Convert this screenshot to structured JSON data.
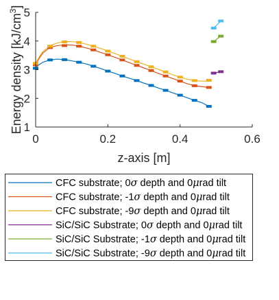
{
  "chart_data": {
    "type": "line",
    "xlabel": "z-axis [m]",
    "ylabel_parts": {
      "main": "Energy density [kJ/cm",
      "sup": "3",
      "close": "]"
    },
    "xlim": [
      0,
      0.6
    ],
    "ylim": [
      1,
      5
    ],
    "xticks": [
      0,
      0.2,
      0.4,
      0.6
    ],
    "xtick_labels": [
      "0",
      "0.2",
      "0.4",
      "0.6"
    ],
    "yticks": [
      1,
      2,
      3,
      4,
      5
    ],
    "ytick_labels": [
      "1",
      "2",
      "3",
      "4",
      "5"
    ],
    "grid": false,
    "legend_position": "below-plot",
    "series": [
      {
        "name": "CFC substrate; 0σ depth and 0μrad tilt",
        "legend": {
          "pre": "CFC substrate; 0",
          "greek1": "σ",
          "mid": " depth and 0",
          "greek2": "μ",
          "post": "rad tilt"
        },
        "color": "#0072BD",
        "x": [
          0,
          0.01,
          0.02,
          0.04,
          0.06,
          0.08,
          0.1,
          0.12,
          0.14,
          0.16,
          0.18,
          0.2,
          0.22,
          0.24,
          0.26,
          0.28,
          0.3,
          0.32,
          0.34,
          0.36,
          0.38,
          0.4,
          0.42,
          0.44,
          0.46,
          0.48
        ],
        "y": [
          3.07,
          3.18,
          3.26,
          3.34,
          3.37,
          3.35,
          3.31,
          3.26,
          3.2,
          3.12,
          3.04,
          2.95,
          2.87,
          2.78,
          2.7,
          2.62,
          2.53,
          2.45,
          2.36,
          2.28,
          2.19,
          2.11,
          2.02,
          1.93,
          1.85,
          1.72
        ],
        "markers_x": [
          0,
          0.04,
          0.08,
          0.12,
          0.16,
          0.2,
          0.24,
          0.28,
          0.32,
          0.36,
          0.4,
          0.44,
          0.48
        ],
        "markers_y": [
          3.05,
          3.34,
          3.35,
          3.26,
          3.12,
          2.95,
          2.78,
          2.62,
          2.45,
          2.28,
          2.11,
          1.93,
          1.72
        ]
      },
      {
        "name": "CFC substrate; -1σ depth and 0μrad tilt",
        "legend": {
          "pre": "CFC substrate; -1",
          "greek1": "σ",
          "mid": " depth and 0",
          "greek2": "μ",
          "post": "rad tilt"
        },
        "color": "#D95319",
        "x": [
          0,
          0.01,
          0.02,
          0.04,
          0.06,
          0.08,
          0.1,
          0.12,
          0.14,
          0.16,
          0.18,
          0.2,
          0.22,
          0.24,
          0.26,
          0.28,
          0.3,
          0.32,
          0.34,
          0.36,
          0.38,
          0.4,
          0.42,
          0.44,
          0.46,
          0.48
        ],
        "y": [
          3.17,
          3.4,
          3.58,
          3.78,
          3.84,
          3.87,
          3.86,
          3.82,
          3.76,
          3.69,
          3.6,
          3.52,
          3.43,
          3.34,
          3.24,
          3.15,
          3.06,
          2.97,
          2.87,
          2.78,
          2.69,
          2.6,
          2.51,
          2.44,
          2.41,
          2.38
        ],
        "markers_x": [
          0,
          0.04,
          0.08,
          0.12,
          0.16,
          0.2,
          0.24,
          0.28,
          0.32,
          0.36,
          0.4,
          0.44,
          0.48
        ],
        "markers_y": [
          3.17,
          3.77,
          3.84,
          3.82,
          3.69,
          3.52,
          3.34,
          3.15,
          2.97,
          2.78,
          2.6,
          2.44,
          2.38
        ]
      },
      {
        "name": "CFC substrate; -9σ depth and 0μrad tilt",
        "legend": {
          "pre": "CFC substrate; -9",
          "greek1": "σ",
          "mid": " depth and 0",
          "greek2": "μ",
          "post": "rad tilt"
        },
        "color": "#EDB120",
        "x": [
          0,
          0.01,
          0.02,
          0.04,
          0.06,
          0.08,
          0.1,
          0.12,
          0.14,
          0.16,
          0.18,
          0.2,
          0.22,
          0.24,
          0.26,
          0.28,
          0.3,
          0.32,
          0.34,
          0.36,
          0.38,
          0.4,
          0.42,
          0.44,
          0.46,
          0.48
        ],
        "y": [
          3.22,
          3.45,
          3.63,
          3.84,
          3.93,
          3.98,
          3.98,
          3.95,
          3.89,
          3.82,
          3.74,
          3.65,
          3.56,
          3.47,
          3.37,
          3.28,
          3.19,
          3.1,
          3.01,
          2.92,
          2.82,
          2.74,
          2.67,
          2.62,
          2.6,
          2.6
        ],
        "markers_x": [
          0,
          0.04,
          0.08,
          0.12,
          0.16,
          0.2,
          0.24,
          0.28,
          0.32,
          0.36,
          0.4,
          0.44,
          0.48
        ],
        "markers_y": [
          3.22,
          3.82,
          3.97,
          3.95,
          3.82,
          3.65,
          3.47,
          3.28,
          3.1,
          2.92,
          2.74,
          2.62,
          2.63
        ]
      },
      {
        "name": "SiC/SiC Substrate; 0σ depth and 0μrad tilt",
        "legend": {
          "pre": "SiC/SiC Substrate; 0",
          "greek1": "σ",
          "mid": " depth and 0",
          "greek2": "μ",
          "post": "rad tilt"
        },
        "color": "#7E2F8E",
        "x": [
          0.493,
          0.513
        ],
        "y": [
          2.88,
          2.93
        ],
        "markers_x": [
          0.493,
          0.513
        ],
        "markers_y": [
          2.88,
          2.93
        ]
      },
      {
        "name": "SiC/SiC Substrate; -1σ depth and 0μrad tilt",
        "legend": {
          "pre": "SiC/SiC Substrate; -1",
          "greek1": "σ",
          "mid": " depth and 0",
          "greek2": "μ",
          "post": "rad tilt"
        },
        "color": "#77AC30",
        "x": [
          0.493,
          0.513
        ],
        "y": [
          3.98,
          4.17
        ],
        "markers_x": [
          0.493,
          0.513
        ],
        "markers_y": [
          3.98,
          4.17
        ]
      },
      {
        "name": "SiC/SiC Substrate; -9σ depth and 0μrad tilt",
        "legend": {
          "pre": "SiC/SiC Substrate; -9",
          "greek1": "σ",
          "mid": " depth and 0",
          "greek2": "μ",
          "post": "rad tilt"
        },
        "color": "#4DBEEE",
        "x": [
          0.493,
          0.513
        ],
        "y": [
          4.45,
          4.7
        ],
        "markers_x": [
          0.493,
          0.513
        ],
        "markers_y": [
          4.45,
          4.7
        ]
      }
    ]
  }
}
